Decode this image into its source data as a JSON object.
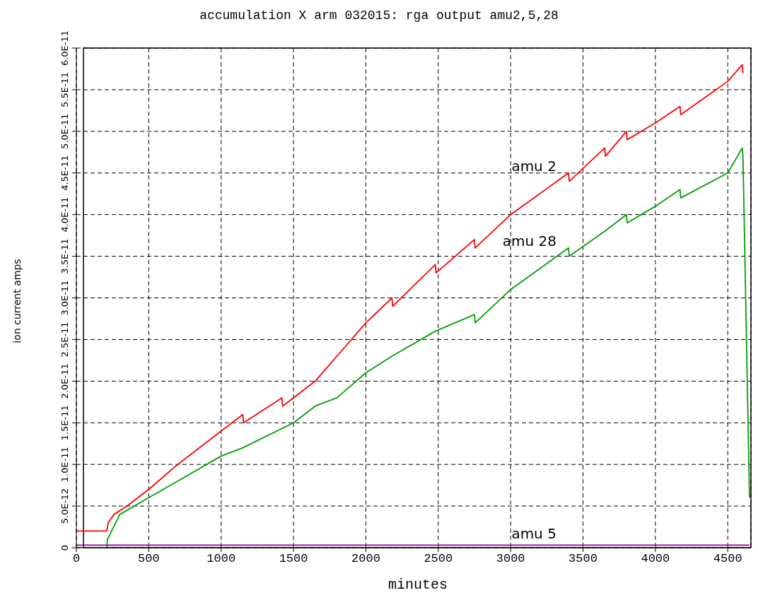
{
  "chart_data": {
    "type": "line",
    "title": "accumulation X arm 032015: rga output amu2,5,28",
    "xlabel": "minutes",
    "ylabel": "ion current amps",
    "xlim": [
      0,
      4660
    ],
    "xticks": [
      0,
      500,
      1000,
      1500,
      2000,
      2500,
      3000,
      3500,
      4000,
      4500
    ],
    "ylim": [
      0,
      6e-11
    ],
    "yticks": [
      0,
      {
        "value": 5e-12,
        "label": "5.0E-12"
      },
      {
        "value": 1e-11,
        "label": "1.0E-11"
      },
      {
        "value": 1.5e-11,
        "label": "1.5E-11"
      },
      {
        "value": 2e-11,
        "label": "2.0E-11"
      },
      {
        "value": 2.5e-11,
        "label": "2.5E-11"
      },
      {
        "value": 3e-11,
        "label": "3.0E-11"
      },
      {
        "value": 3.5e-11,
        "label": "3.5E-11"
      },
      {
        "value": 4e-11,
        "label": "4.0E-11"
      },
      {
        "value": 4.5e-11,
        "label": "4.5E-11"
      },
      {
        "value": 5e-11,
        "label": "5.0E-11"
      },
      {
        "value": 5.5e-11,
        "label": "5.5E-11"
      },
      {
        "value": 6e-11,
        "label": "6.0E-11"
      }
    ],
    "grid": true,
    "marker": "none",
    "line_style": "solid",
    "series": [
      {
        "name": "amu 2",
        "color": "#ff0000",
        "x": [
          0,
          210,
          220,
          260,
          350,
          500,
          700,
          1000,
          1150,
          1155,
          1420,
          1425,
          1650,
          1800,
          2000,
          2180,
          2185,
          2480,
          2485,
          2750,
          2755,
          3000,
          3400,
          3405,
          3650,
          3655,
          3800,
          3805,
          4000,
          4170,
          4175,
          4500,
          4600,
          4605
        ],
        "values": [
          2e-12,
          2e-12,
          3e-12,
          4e-12,
          5e-12,
          7e-12,
          1e-11,
          1.4e-11,
          1.6e-11,
          1.5e-11,
          1.8e-11,
          1.7e-11,
          2e-11,
          2.3e-11,
          2.7e-11,
          3e-11,
          2.9e-11,
          3.4e-11,
          3.3e-11,
          3.7e-11,
          3.6e-11,
          4e-11,
          4.5e-11,
          4.4e-11,
          4.8e-11,
          4.7e-11,
          5e-11,
          4.9e-11,
          5.1e-11,
          5.3e-11,
          5.2e-11,
          5.6e-11,
          5.8e-11,
          5.7e-11
        ]
      },
      {
        "name": "amu 28",
        "color": "#00a000",
        "x": [
          0,
          210,
          215,
          300,
          500,
          1000,
          1150,
          1500,
          1650,
          1800,
          2000,
          2180,
          2480,
          2750,
          2755,
          3000,
          3400,
          3405,
          3650,
          3800,
          3805,
          4000,
          4170,
          4175,
          4500,
          4600,
          4605,
          4650
        ],
        "values": [
          0,
          0,
          1e-12,
          4e-12,
          6e-12,
          1.1e-11,
          1.2e-11,
          1.5e-11,
          1.7e-11,
          1.8e-11,
          2.1e-11,
          2.3e-11,
          2.6e-11,
          2.8e-11,
          2.7e-11,
          3.1e-11,
          3.6e-11,
          3.5e-11,
          3.8e-11,
          4e-11,
          3.9e-11,
          4.1e-11,
          4.3e-11,
          4.2e-11,
          4.5e-11,
          4.8e-11,
          4.7e-11,
          6e-12
        ]
      },
      {
        "name": "amu 5",
        "color": "#a000a0",
        "x": [
          0,
          4650
        ],
        "values": [
          3e-13,
          3e-13
        ]
      }
    ]
  }
}
